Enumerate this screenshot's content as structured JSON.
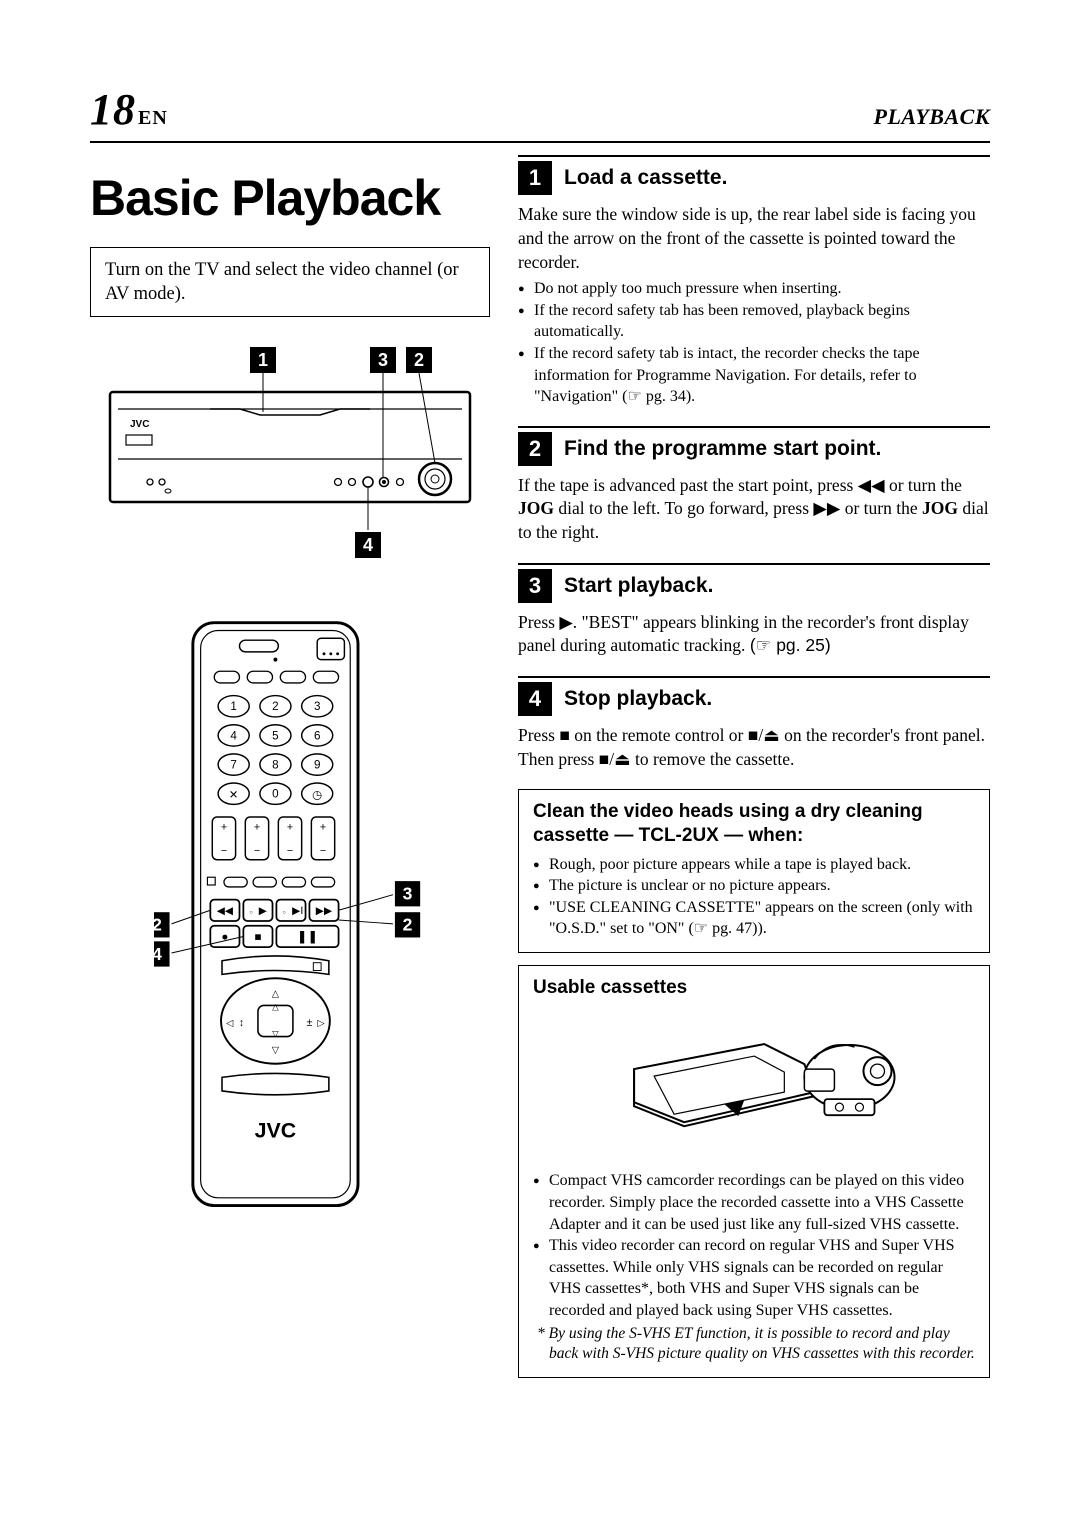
{
  "header": {
    "page_number": "18",
    "lang": "EN",
    "section": "PLAYBACK"
  },
  "title": "Basic Playback",
  "intro_tip": "Turn on the TV and select the video channel (or AV mode).",
  "diagram_callouts": {
    "vcr": [
      "1",
      "3",
      "2",
      "4"
    ],
    "remote": [
      "3",
      "2",
      "2",
      "4"
    ]
  },
  "steps": [
    {
      "num": "1",
      "title": "Load a cassette.",
      "body": "Make sure the window side is up, the rear label side is facing you and the arrow on the front of the cassette is pointed toward the recorder.",
      "bullets": [
        "Do not apply too much pressure when inserting.",
        "If the record safety tab has been removed, playback begins automatically.",
        "If the record safety tab is intact, the recorder checks the tape information for Programme Navigation. For details, refer to \"Navigation\" (☞ pg. 34)."
      ]
    },
    {
      "num": "2",
      "title": "Find the programme start point.",
      "body_html": "If the tape is advanced past the start point, press ◀◀ or turn the <b>JOG</b> dial to the left. To go forward, press ▶▶ or turn the <b>JOG</b> dial to the right."
    },
    {
      "num": "3",
      "title": "Start playback.",
      "body_html": "Press ▶. \"BEST\" appears blinking in the recorder's front display panel during automatic tracking. <span class=\"ref\">(☞ pg. 25)</span>"
    },
    {
      "num": "4",
      "title": "Stop playback.",
      "body_html": "Press ■ on the remote control or ■/⏏ on the recorder's front panel. Then press ■/⏏ to remove the cassette."
    }
  ],
  "clean_box": {
    "title": "Clean the video heads using a dry cleaning cassette — TCL-2UX — when:",
    "bullets": [
      "Rough, poor picture appears while a tape is played back.",
      "The picture is unclear or no picture appears.",
      "\"USE CLEANING CASSETTE\" appears on the screen (only with \"O.S.D.\" set to \"ON\" (☞ pg. 47))."
    ]
  },
  "usable_box": {
    "title": "Usable cassettes",
    "bullets": [
      "Compact VHS camcorder recordings can be played on this video recorder. Simply place the recorded cassette into a VHS Cassette Adapter and it can be used just like any full-sized VHS cassette.",
      "This video recorder can record on regular VHS and Super VHS cassettes. While only VHS signals can be recorded on regular VHS cassettes*, both VHS and Super VHS signals can be recorded and played back using Super VHS cassettes."
    ],
    "footnote": "By using the S-VHS ET function, it is possible to record and play back with S-VHS picture quality on VHS cassettes with this recorder."
  },
  "brand": "JVC"
}
